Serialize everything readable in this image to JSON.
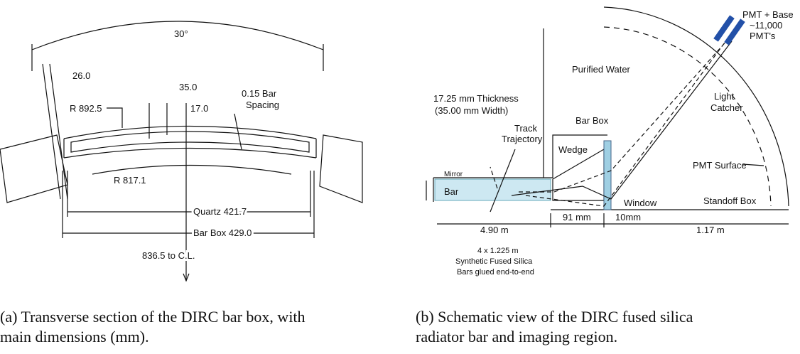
{
  "panel_a": {
    "angle": "30°",
    "dim_26": "26.0",
    "dim_35": "35.0",
    "radius_outer": "R 892.5",
    "dim_17": "17.0",
    "bar_spacing": [
      "0.15 Bar",
      "Spacing"
    ],
    "radius_inner": "R 817.1",
    "quartz": "Quartz  421.7",
    "bar_box": "Bar Box  429.0",
    "to_cl": "836.5  to C.L.",
    "caption": "(a) Transverse section of the DIRC bar box, with main dimensions (mm)."
  },
  "panel_b": {
    "pmt": [
      "PMT + Base",
      "~11,000",
      "PMT's"
    ],
    "water": "Purified Water",
    "thickness": [
      "17.25 mm Thickness",
      "(35.00 mm Width)"
    ],
    "bar_box": "Bar Box",
    "track": [
      "Track",
      "Trajectory"
    ],
    "wedge": "Wedge",
    "light_catcher": [
      "Light",
      "Catcher"
    ],
    "mirror": "Mirror",
    "bar": "Bar",
    "pmt_surface": "PMT Surface",
    "window": "Window",
    "standoff": "Standoff Box",
    "dim_91": "91 mm",
    "dim_10": "10mm",
    "dim_490": "4.90 m",
    "dim_117": "1.17 m",
    "bars": [
      "4 x 1.225 m",
      "Synthetic Fused Silica",
      "Bars glued end-to-end"
    ],
    "caption": "(b) Schematic view of the DIRC fused silica radiator bar and imaging region."
  }
}
